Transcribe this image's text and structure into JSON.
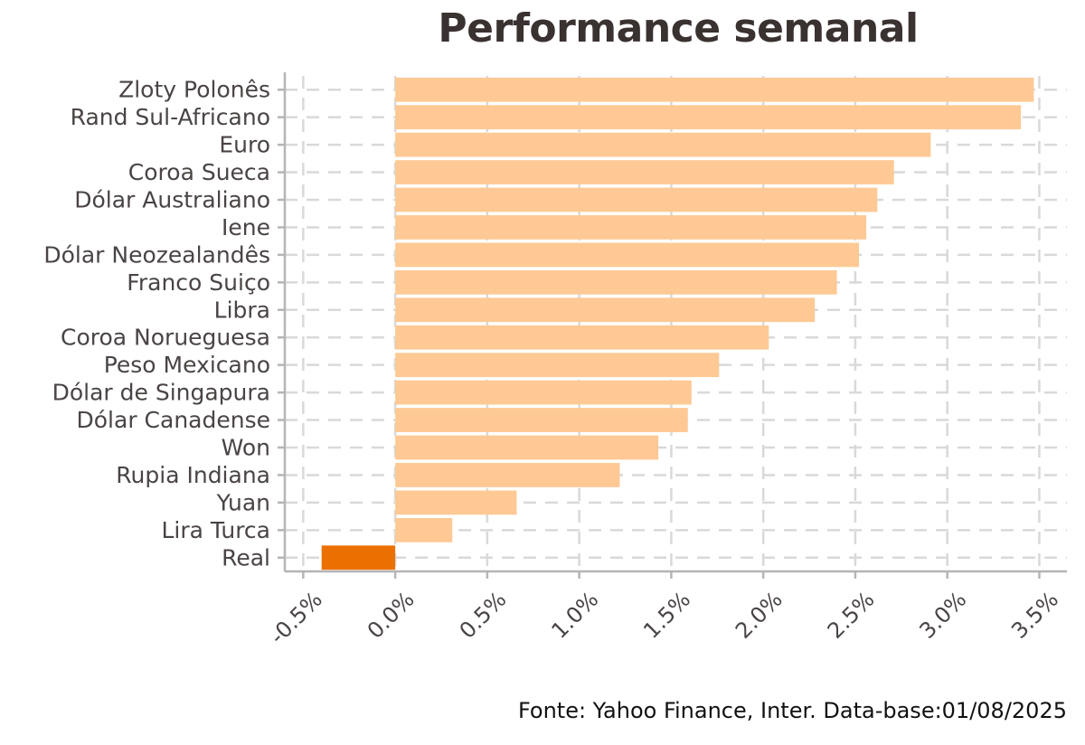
{
  "chart_data": {
    "type": "bar",
    "orientation": "horizontal",
    "title": "Performance semanal",
    "caption": "Fonte: Yahoo Finance, Inter. Data-base:01/08/2025",
    "categories": [
      "Zloty Polonês",
      "Rand Sul-Africano",
      "Euro",
      "Coroa Sueca",
      "Dólar Australiano",
      "Iene",
      "Dólar Neozealandês",
      "Franco Suiço",
      "Libra",
      "Coroa Norueguesa",
      "Peso Mexicano",
      "Dólar de Singapura",
      "Dólar Canadense",
      "Won",
      "Rupia Indiana",
      "Yuan",
      "Lira Turca",
      "Real"
    ],
    "values": [
      3.47,
      3.4,
      2.91,
      2.71,
      2.62,
      2.56,
      2.52,
      2.4,
      2.28,
      2.03,
      1.76,
      1.61,
      1.59,
      1.43,
      1.22,
      0.66,
      0.31,
      -0.4
    ],
    "highlight_category": "Real",
    "bar_color": "#FEC994",
    "highlight_color": "#EB7000",
    "x_ticks": [
      -0.5,
      0.0,
      0.5,
      1.0,
      1.5,
      2.0,
      2.5,
      3.0,
      3.5
    ],
    "x_tick_labels": [
      "-0.5%",
      "0.0%",
      "0.5%",
      "1.0%",
      "1.5%",
      "2.0%",
      "2.5%",
      "3.0%",
      "3.5%"
    ],
    "xlim": [
      -0.6,
      3.65
    ],
    "grid": "dashed",
    "xlabel": "",
    "ylabel": ""
  }
}
